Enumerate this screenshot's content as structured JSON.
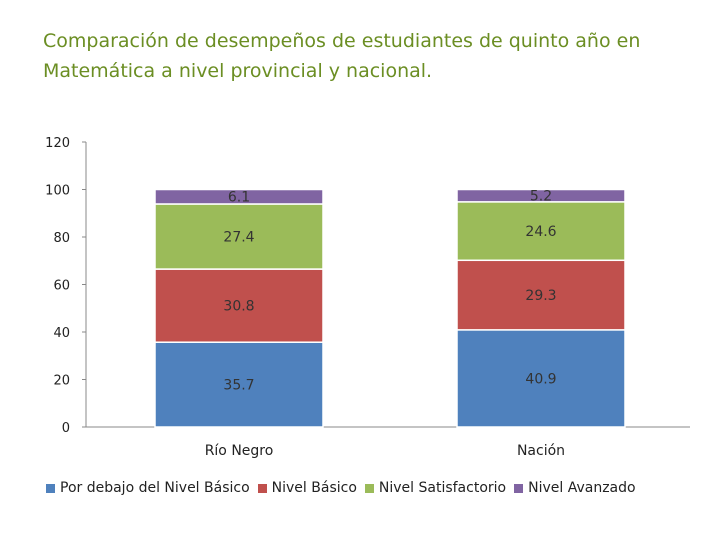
{
  "chart_data": {
    "type": "bar",
    "stacked": true,
    "title": "Comparación de desempeños de estudiantes de quinto año en Matemática a nivel provincial y nacional.",
    "categories": [
      "Río Negro",
      "Nación"
    ],
    "series": [
      {
        "name": "Por debajo del Nivel Básico",
        "color": "#4f81bd",
        "values": [
          35.7,
          40.9
        ]
      },
      {
        "name": "Nivel Básico",
        "color": "#c0504d",
        "values": [
          30.8,
          29.3
        ]
      },
      {
        "name": "Nivel Satisfactorio",
        "color": "#9bbb59",
        "values": [
          27.4,
          24.6
        ]
      },
      {
        "name": "Nivel Avanzado",
        "color": "#8064a2",
        "values": [
          6.1,
          5.2
        ]
      }
    ],
    "ylim": [
      0,
      120
    ],
    "yticks": [
      "0",
      "20",
      "40",
      "60",
      "80",
      "100",
      "120"
    ],
    "xlabel": "",
    "ylabel": "",
    "legend_position": "bottom"
  }
}
